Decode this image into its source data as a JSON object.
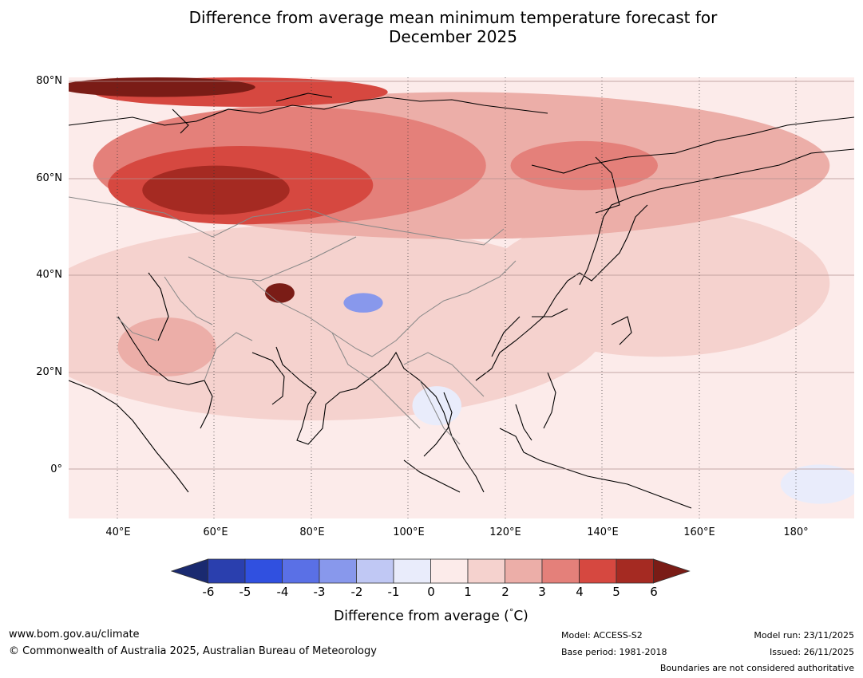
{
  "title_line1": "Difference from average mean minimum temperature forecast for",
  "title_line2": "December 2025",
  "lat_labels": [
    "80°N",
    "60°N",
    "40°N",
    "20°N",
    "0°"
  ],
  "lon_labels": [
    "40°E",
    "60°E",
    "80°E",
    "100°E",
    "120°E",
    "140°E",
    "160°E",
    "180°"
  ],
  "colorbar": {
    "ticks": [
      "-6",
      "-5",
      "-4",
      "-3",
      "-2",
      "-1",
      "0",
      "1",
      "2",
      "3",
      "4",
      "5",
      "6"
    ],
    "colors": [
      "#1a2a70",
      "#2a3fae",
      "#3050e0",
      "#5a70e6",
      "#8898ec",
      "#c0c8f4",
      "#e9ecfb",
      "#fcebea",
      "#f5d2ce",
      "#ecaea8",
      "#e4807a",
      "#d64840",
      "#a52a22",
      "#7a1c16"
    ],
    "label": "Difference from average (",
    "label_unit": "°",
    "label_tail": "C)"
  },
  "map": {
    "extent": {
      "lon_min": 30,
      "lon_max": 190,
      "lat_min": -10,
      "lat_max": 80
    },
    "background_color": "#fcebea",
    "anomaly_regions": [
      {
        "level": 1,
        "color": "#f5d2ce",
        "center": [
          80,
          30
        ],
        "radius": [
          60,
          20
        ]
      },
      {
        "level": 1,
        "color": "#f5d2ce",
        "center": [
          150,
          38
        ],
        "radius": [
          35,
          15
        ]
      },
      {
        "level": 2,
        "color": "#ecaea8",
        "center": [
          110,
          62
        ],
        "radius": [
          75,
          15
        ]
      },
      {
        "level": 2,
        "color": "#ecaea8",
        "center": [
          50,
          25
        ],
        "radius": [
          10,
          6
        ]
      },
      {
        "level": 3,
        "color": "#e4807a",
        "center": [
          75,
          62
        ],
        "radius": [
          40,
          12
        ]
      },
      {
        "level": 3,
        "color": "#e4807a",
        "center": [
          135,
          62
        ],
        "radius": [
          15,
          5
        ]
      },
      {
        "level": 4,
        "color": "#d64840",
        "center": [
          65,
          58
        ],
        "radius": [
          27,
          8
        ]
      },
      {
        "level": 4,
        "color": "#d64840",
        "center": [
          65,
          77
        ],
        "radius": [
          30,
          3
        ]
      },
      {
        "level": 5,
        "color": "#a52a22",
        "center": [
          60,
          57
        ],
        "radius": [
          15,
          5
        ]
      },
      {
        "level": 6,
        "color": "#7a1c16",
        "center": [
          48,
          78
        ],
        "radius": [
          20,
          2
        ]
      },
      {
        "level": 6,
        "color": "#7a1c16",
        "center": [
          73,
          36
        ],
        "radius": [
          3,
          2
        ]
      },
      {
        "level": -2,
        "color": "#8898ec",
        "center": [
          90,
          34
        ],
        "radius": [
          4,
          2
        ]
      },
      {
        "level": -1,
        "color": "#e9ecfb",
        "center": [
          105,
          13
        ],
        "radius": [
          5,
          4
        ]
      },
      {
        "level": -1,
        "color": "#e9ecfb",
        "center": [
          183,
          -3
        ],
        "radius": [
          8,
          4
        ]
      }
    ]
  },
  "footer": {
    "website": "www.bom.gov.au/climate",
    "copyright": "© Commonwealth of Australia 2025, Australian Bureau of Meteorology",
    "model": "Model: ACCESS-S2",
    "base_period": "Base period: 1981-2018",
    "model_run": "Model run: 23/11/2025",
    "issued": "Issued: 26/11/2025",
    "boundaries_note": "Boundaries are not considered authoritative"
  }
}
